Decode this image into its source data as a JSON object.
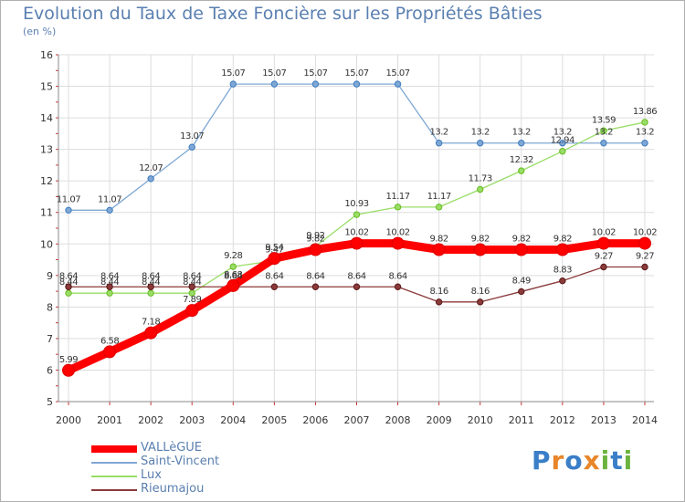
{
  "title": "Evolution du Taux de Taxe Foncière sur les Propriétés Bâties",
  "subtitle": "(en %)",
  "logo": {
    "text": "Proxiti",
    "letters": [
      {
        "ch": "P",
        "color": "#3a7ec8"
      },
      {
        "ch": "r",
        "color": "#e8862a"
      },
      {
        "ch": "o",
        "color": "#3a7ec8"
      },
      {
        "ch": "x",
        "color": "#e8862a"
      },
      {
        "ch": "i",
        "color": "#6cb33f"
      },
      {
        "ch": "t",
        "color": "#3a7ec8"
      },
      {
        "ch": "i",
        "color": "#6cb33f"
      }
    ]
  },
  "chart_data": {
    "type": "line",
    "x": [
      "2000",
      "2001",
      "2002",
      "2003",
      "2004",
      "2005",
      "2006",
      "2007",
      "2008",
      "2009",
      "2010",
      "2011",
      "2012",
      "2013",
      "2014"
    ],
    "ylim": [
      5,
      16
    ],
    "yticks": [
      "5",
      "6",
      "7",
      "8",
      "9",
      "10",
      "11",
      "12",
      "13",
      "14",
      "15",
      "16"
    ],
    "grid": true,
    "legend": "bottom-left",
    "series": [
      {
        "name": "VALLèGUE",
        "color": "#ff0000",
        "marker": "#dd0000",
        "values": [
          5.99,
          6.58,
          7.18,
          7.89,
          8.68,
          9.54,
          9.82,
          10.02,
          10.02,
          9.82,
          9.82,
          9.82,
          9.82,
          10.02,
          10.02
        ],
        "labels": [
          "5.99",
          "6.58",
          "7.18",
          "7.89",
          "8.68",
          "9.54",
          "9.82",
          "10.02",
          "10.02",
          "9.82",
          "9.82",
          "9.82",
          "9.82",
          "10.02",
          "10.02"
        ]
      },
      {
        "name": "Saint-Vincent",
        "color": "#7fa7d4",
        "marker": "#3b7bbf",
        "values": [
          11.07,
          11.07,
          12.07,
          13.07,
          15.07,
          15.07,
          15.07,
          15.07,
          15.07,
          13.2,
          13.2,
          13.2,
          13.2,
          13.2,
          13.2
        ],
        "labels": [
          "11.07",
          "11.07",
          "12.07",
          "13.07",
          "15.07",
          "15.07",
          "15.07",
          "15.07",
          "15.07",
          "13.2",
          "13.2",
          "13.2",
          "13.2",
          "13.2",
          "13.2"
        ]
      },
      {
        "name": "Lux",
        "color": "#99dd66",
        "marker": "#66bb22",
        "values": [
          8.44,
          8.44,
          8.44,
          8.44,
          9.28,
          9.47,
          9.92,
          10.93,
          11.17,
          11.17,
          11.73,
          12.32,
          12.94,
          13.59,
          13.86
        ],
        "labels": [
          "8.44",
          "8.44",
          "8.44",
          "8.44",
          "9.28",
          "9.47",
          "9.92",
          "10.93",
          "11.17",
          "11.17",
          "11.73",
          "12.32",
          "12.94",
          "13.59",
          "13.86"
        ]
      },
      {
        "name": "Rieumajou",
        "color": "#8b3a3a",
        "marker": "#5a1a1a",
        "values": [
          8.64,
          8.64,
          8.64,
          8.64,
          8.64,
          8.64,
          8.64,
          8.64,
          8.64,
          8.16,
          8.16,
          8.49,
          8.83,
          9.27,
          9.27
        ],
        "labels": [
          "8.64",
          "8.64",
          "8.64",
          "8.64",
          "8.64",
          "8.64",
          "8.64",
          "8.64",
          "8.64",
          "8.16",
          "8.16",
          "8.49",
          "8.83",
          "9.27",
          "9.27"
        ]
      }
    ]
  }
}
